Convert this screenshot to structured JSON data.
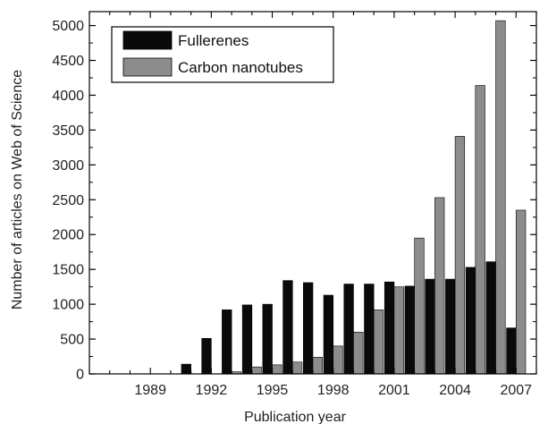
{
  "chart_data": {
    "type": "bar",
    "title": "",
    "xlabel": "Publication year",
    "ylabel": "Number of articles on Web of Science",
    "x": [
      1987,
      1988,
      1989,
      1990,
      1991,
      1992,
      1993,
      1994,
      1995,
      1996,
      1997,
      1998,
      1999,
      2000,
      2001,
      2002,
      2003,
      2004,
      2005,
      2006,
      2007
    ],
    "x_tick_labels": [
      "1989",
      "1992",
      "1995",
      "1998",
      "2001",
      "2004",
      "2007"
    ],
    "x_tick_values": [
      1989,
      1992,
      1995,
      1998,
      2001,
      2004,
      2007
    ],
    "xlim": [
      1986,
      2008
    ],
    "ylim": [
      0,
      5200
    ],
    "y_tick_labels": [
      "0",
      "500",
      "1000",
      "1500",
      "2000",
      "2500",
      "3000",
      "3500",
      "4000",
      "4500",
      "5000"
    ],
    "y_tick_values": [
      0,
      500,
      1000,
      1500,
      2000,
      2500,
      3000,
      3500,
      4000,
      4500,
      5000
    ],
    "legend_position": "top-left",
    "grid": false,
    "series": [
      {
        "name": "Fullerenes",
        "color": "#0a0a0a",
        "values": [
          0,
          0,
          0,
          0,
          140,
          510,
          920,
          990,
          1000,
          1340,
          1310,
          1130,
          1290,
          1290,
          1320,
          1260,
          1360,
          1360,
          1530,
          1610,
          660
        ]
      },
      {
        "name": "Carbon nanotubes",
        "color": "#8c8c8c",
        "values": [
          0,
          0,
          0,
          0,
          0,
          0,
          30,
          100,
          130,
          170,
          240,
          400,
          600,
          920,
          1250,
          1950,
          2530,
          3410,
          4140,
          5070,
          2350
        ]
      }
    ]
  }
}
